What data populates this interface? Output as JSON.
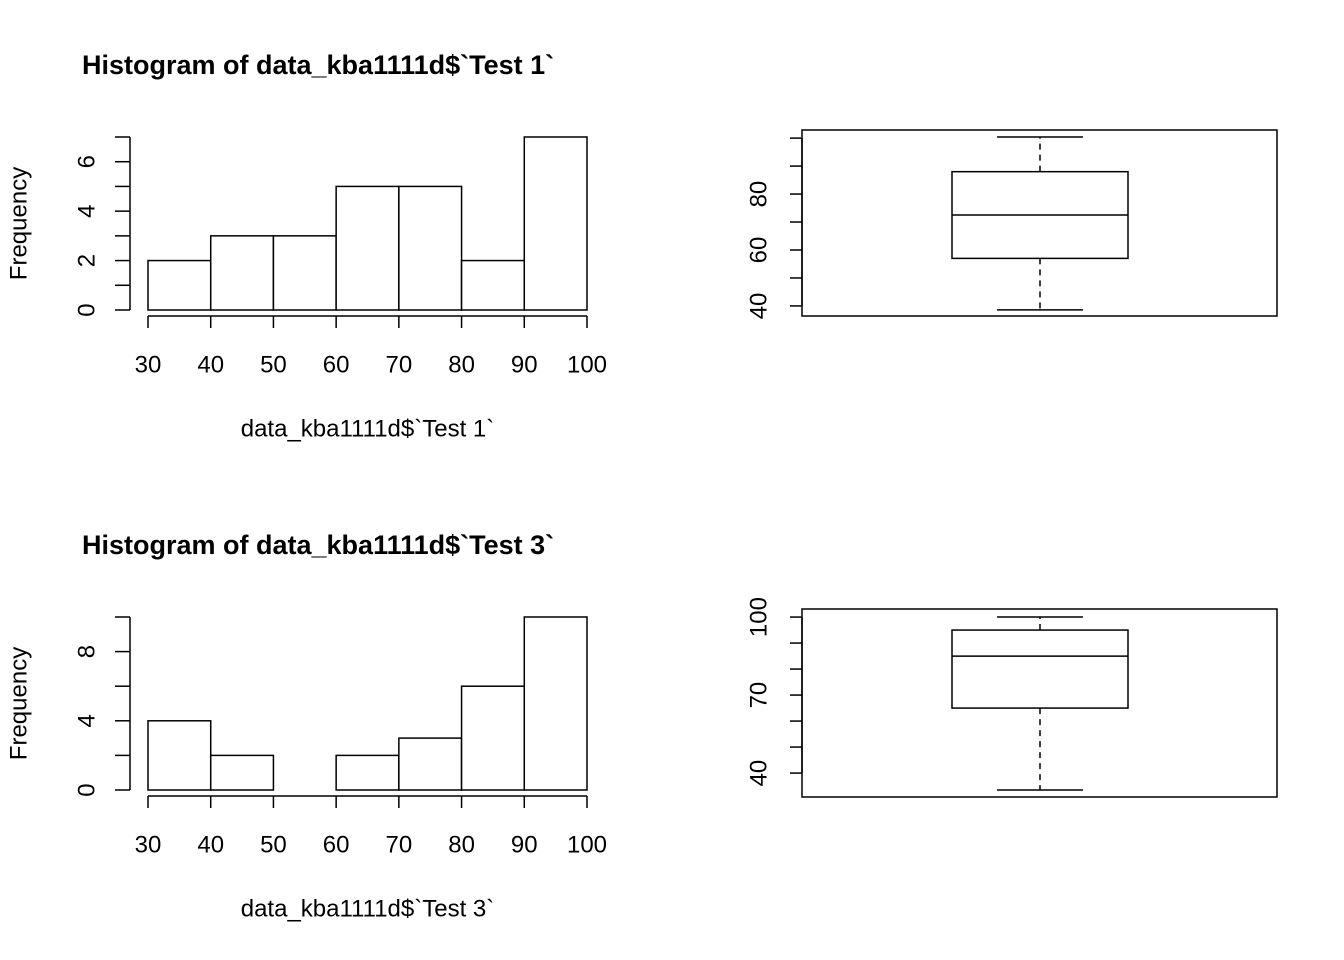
{
  "chart_data": [
    {
      "type": "histogram",
      "title": "Histogram of data_kba1111d$`Test 1`",
      "x_label": "data_kba1111d$`Test 1`",
      "y_label": "Frequency",
      "bins": [
        30,
        40,
        50,
        60,
        70,
        80,
        90,
        100
      ],
      "counts": [
        2,
        3,
        3,
        5,
        5,
        2,
        7
      ],
      "color": "#ffffff",
      "xlim": [
        30,
        100
      ],
      "xticks": [
        30,
        40,
        50,
        60,
        70,
        80,
        90,
        100
      ],
      "ylim": [
        0,
        7
      ],
      "yticks": [
        0,
        2,
        4,
        6
      ],
      "yminor": [
        1,
        3,
        5,
        7
      ]
    },
    {
      "type": "box",
      "min": 38.6,
      "q1": 57,
      "median": 72.5,
      "q3": 88,
      "max": 100.4,
      "color": "#ffffff",
      "ylim": [
        36.4,
        102.9
      ],
      "yticks": [
        40,
        60,
        80
      ],
      "yminor": [
        50,
        70,
        90,
        100
      ]
    },
    {
      "type": "histogram",
      "title": "Histogram of data_kba1111d$`Test 3`",
      "x_label": "data_kba1111d$`Test 3`",
      "y_label": "Frequency",
      "bins": [
        30,
        40,
        50,
        60,
        70,
        80,
        90,
        100
      ],
      "counts": [
        4,
        2,
        0,
        2,
        3,
        6,
        10
      ],
      "color": "#ffffff",
      "xlim": [
        30,
        100
      ],
      "xticks": [
        30,
        40,
        50,
        60,
        70,
        80,
        90,
        100
      ],
      "ylim": [
        0,
        10
      ],
      "yticks": [
        0,
        4,
        8
      ],
      "yminor": [
        2,
        6,
        10
      ]
    },
    {
      "type": "box",
      "min": 33.5,
      "q1": 65,
      "median": 85,
      "q3": 95,
      "max": 100,
      "color": "#ffffff",
      "ylim": [
        30.8,
        103.1
      ],
      "yticks": [
        40,
        70,
        100
      ],
      "yminor": [
        50,
        60,
        80,
        90
      ]
    }
  ]
}
